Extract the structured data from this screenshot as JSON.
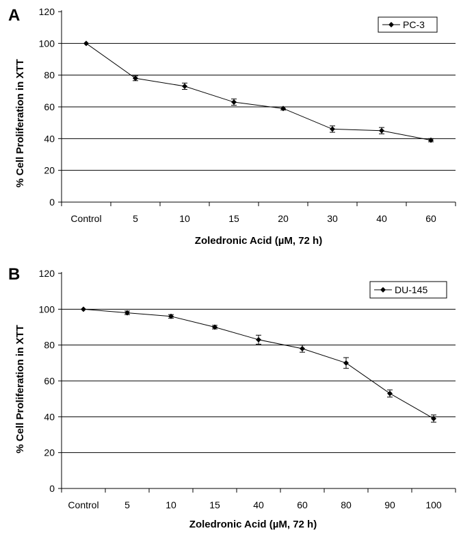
{
  "chart_data": [
    {
      "panel": "A",
      "type": "line",
      "categories": [
        "Control",
        "5",
        "10",
        "15",
        "20",
        "30",
        "40",
        "60"
      ],
      "series": [
        {
          "name": "PC-3",
          "values": [
            100,
            78,
            73,
            63,
            59,
            46,
            45,
            39
          ],
          "errors": [
            0,
            1.5,
            2,
            2,
            1,
            2,
            2,
            1
          ]
        }
      ],
      "xlabel": "Zoledronic Acid (µM, 72 h)",
      "ylabel": "% Cell Proliferation in XTT",
      "ylim": [
        0,
        120
      ],
      "yticks": [
        0,
        20,
        40,
        60,
        80,
        100,
        120
      ],
      "grid": true,
      "legend": "top-right"
    },
    {
      "panel": "B",
      "type": "line",
      "categories": [
        "Control",
        "5",
        "10",
        "15",
        "40",
        "60",
        "80",
        "90",
        "100"
      ],
      "series": [
        {
          "name": "DU-145",
          "values": [
            100,
            98,
            96,
            90,
            83,
            78,
            70,
            53,
            39
          ],
          "errors": [
            0,
            1,
            1,
            1,
            2.5,
            2,
            3,
            2,
            2
          ]
        }
      ],
      "xlabel": "Zoledronic Acid (µM, 72 h)",
      "ylabel": "% Cell Proliferation in XTT",
      "ylim": [
        0,
        120
      ],
      "yticks": [
        0,
        20,
        40,
        60,
        80,
        100,
        120
      ],
      "grid": true,
      "legend": "top-right"
    }
  ]
}
